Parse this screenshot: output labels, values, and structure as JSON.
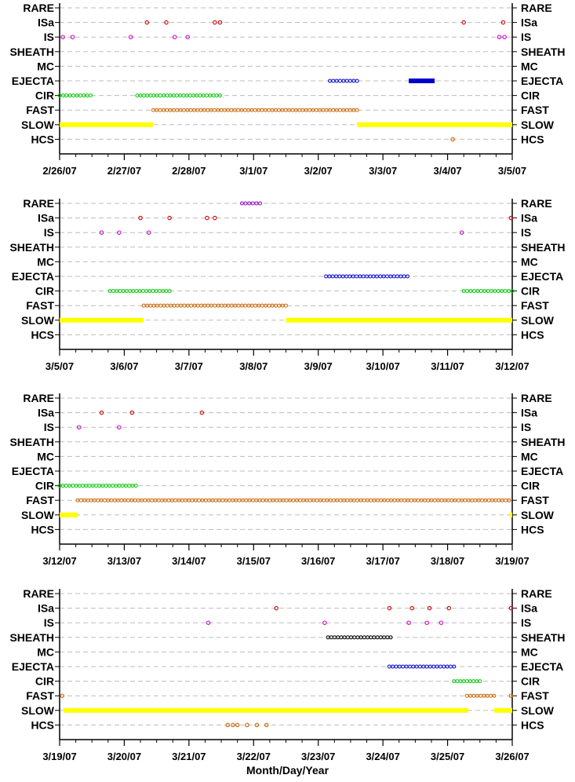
{
  "chart_data": {
    "type": "scatter",
    "xlabel": "Month/Day/Year",
    "categories": [
      "RARE",
      "ISa",
      "IS",
      "SHEATH",
      "MC",
      "EJECTA",
      "CIR",
      "FAST",
      "SLOW",
      "HCS"
    ],
    "colors": {
      "RARE": "#9900cc",
      "ISa": "#cc0000",
      "IS": "#cc00cc",
      "SHEATH": "#000000",
      "MC": "#000000",
      "EJECTA": "#0000cc",
      "CIR": "#00cc00",
      "FAST": "#cc6600",
      "SLOW": "#ffff00",
      "HCS": "#cc6600"
    },
    "panels": [
      {
        "x_ticks": [
          "2/26/07",
          "2/27/07",
          "2/28/07",
          "3/1/07",
          "3/2/07",
          "3/3/07",
          "3/4/07",
          "3/5/07"
        ],
        "xlim": [
          0,
          7
        ],
        "series": [
          {
            "name": "ISa",
            "points": [
              1.35,
              1.65,
              2.4,
              2.48,
              6.25,
              6.86
            ]
          },
          {
            "name": "IS",
            "points": [
              0.05,
              0.2,
              1.1,
              1.78,
              1.98,
              6.8,
              6.88
            ]
          },
          {
            "name": "EJECTA",
            "ranges": [
              [
                4.18,
                4.6,
                "open"
              ],
              [
                5.4,
                5.8,
                "solid"
              ]
            ]
          },
          {
            "name": "CIR",
            "ranges": [
              [
                0.0,
                0.48,
                "open"
              ],
              [
                1.2,
                2.48,
                "open"
              ]
            ]
          },
          {
            "name": "FAST",
            "ranges": [
              [
                1.45,
                4.6,
                "open"
              ]
            ]
          },
          {
            "name": "SLOW",
            "ranges": [
              [
                0.0,
                1.45,
                "solid"
              ],
              [
                4.6,
                7.0,
                "solid"
              ]
            ]
          },
          {
            "name": "HCS",
            "points": [
              6.08
            ]
          }
        ]
      },
      {
        "x_ticks": [
          "3/5/07",
          "3/6/07",
          "3/7/07",
          "3/8/07",
          "3/9/07",
          "3/10/07",
          "3/11/07",
          "3/12/07"
        ],
        "xlim": [
          0,
          7
        ],
        "series": [
          {
            "name": "RARE",
            "ranges": [
              [
                2.82,
                3.1,
                "open"
              ]
            ]
          },
          {
            "name": "ISa",
            "points": [
              1.25,
              1.7,
              2.28,
              2.4,
              6.98
            ]
          },
          {
            "name": "IS",
            "points": [
              0.65,
              0.92,
              1.38,
              6.22
            ]
          },
          {
            "name": "EJECTA",
            "ranges": [
              [
                4.12,
                5.38,
                "open"
              ]
            ]
          },
          {
            "name": "CIR",
            "ranges": [
              [
                0.78,
                1.7,
                "open"
              ],
              [
                6.25,
                7.0,
                "open"
              ]
            ]
          },
          {
            "name": "FAST",
            "ranges": [
              [
                1.3,
                3.5,
                "open"
              ]
            ]
          },
          {
            "name": "SLOW",
            "ranges": [
              [
                0.0,
                1.3,
                "solid"
              ],
              [
                3.5,
                7.0,
                "solid"
              ]
            ]
          }
        ]
      },
      {
        "x_ticks": [
          "3/12/07",
          "3/13/07",
          "3/14/07",
          "3/15/07",
          "3/16/07",
          "3/17/07",
          "3/18/07",
          "3/19/07"
        ],
        "xlim": [
          0,
          7
        ],
        "series": [
          {
            "name": "ISa",
            "points": [
              0.65,
              1.12,
              2.2
            ]
          },
          {
            "name": "IS",
            "points": [
              0.3,
              0.92
            ]
          },
          {
            "name": "CIR",
            "ranges": [
              [
                0.0,
                1.18,
                "open"
              ]
            ]
          },
          {
            "name": "FAST",
            "ranges": [
              [
                0.28,
                6.95,
                "open"
              ]
            ]
          },
          {
            "name": "SLOW",
            "ranges": [
              [
                0.0,
                0.28,
                "solid"
              ],
              [
                6.96,
                7.0,
                "solid"
              ]
            ]
          }
        ]
      },
      {
        "x_ticks": [
          "3/19/07",
          "3/20/07",
          "3/21/07",
          "3/22/07",
          "3/23/07",
          "3/24/07",
          "3/25/07",
          "3/26/07"
        ],
        "xlim": [
          0,
          7
        ],
        "series": [
          {
            "name": "ISa",
            "points": [
              3.35,
              5.1,
              5.45,
              5.72,
              6.02,
              6.98
            ]
          },
          {
            "name": "IS",
            "points": [
              2.3,
              4.1,
              5.4,
              5.68,
              5.9
            ]
          },
          {
            "name": "SHEATH",
            "ranges": [
              [
                4.15,
                5.12,
                "open"
              ]
            ]
          },
          {
            "name": "EJECTA",
            "ranges": [
              [
                5.1,
                6.1,
                "open"
              ]
            ]
          },
          {
            "name": "CIR",
            "ranges": [
              [
                6.1,
                6.5,
                "open"
              ]
            ]
          },
          {
            "name": "FAST",
            "points": [
              0.04,
              6.98
            ],
            "ranges": [
              [
                6.3,
                6.72,
                "open"
              ]
            ]
          },
          {
            "name": "SLOW",
            "ranges": [
              [
                0.06,
                6.32,
                "solid"
              ],
              [
                6.72,
                7.0,
                "solid"
              ]
            ]
          },
          {
            "name": "HCS",
            "points": [
              2.6,
              2.68,
              2.75,
              2.9,
              3.05,
              3.2
            ]
          }
        ]
      }
    ]
  }
}
